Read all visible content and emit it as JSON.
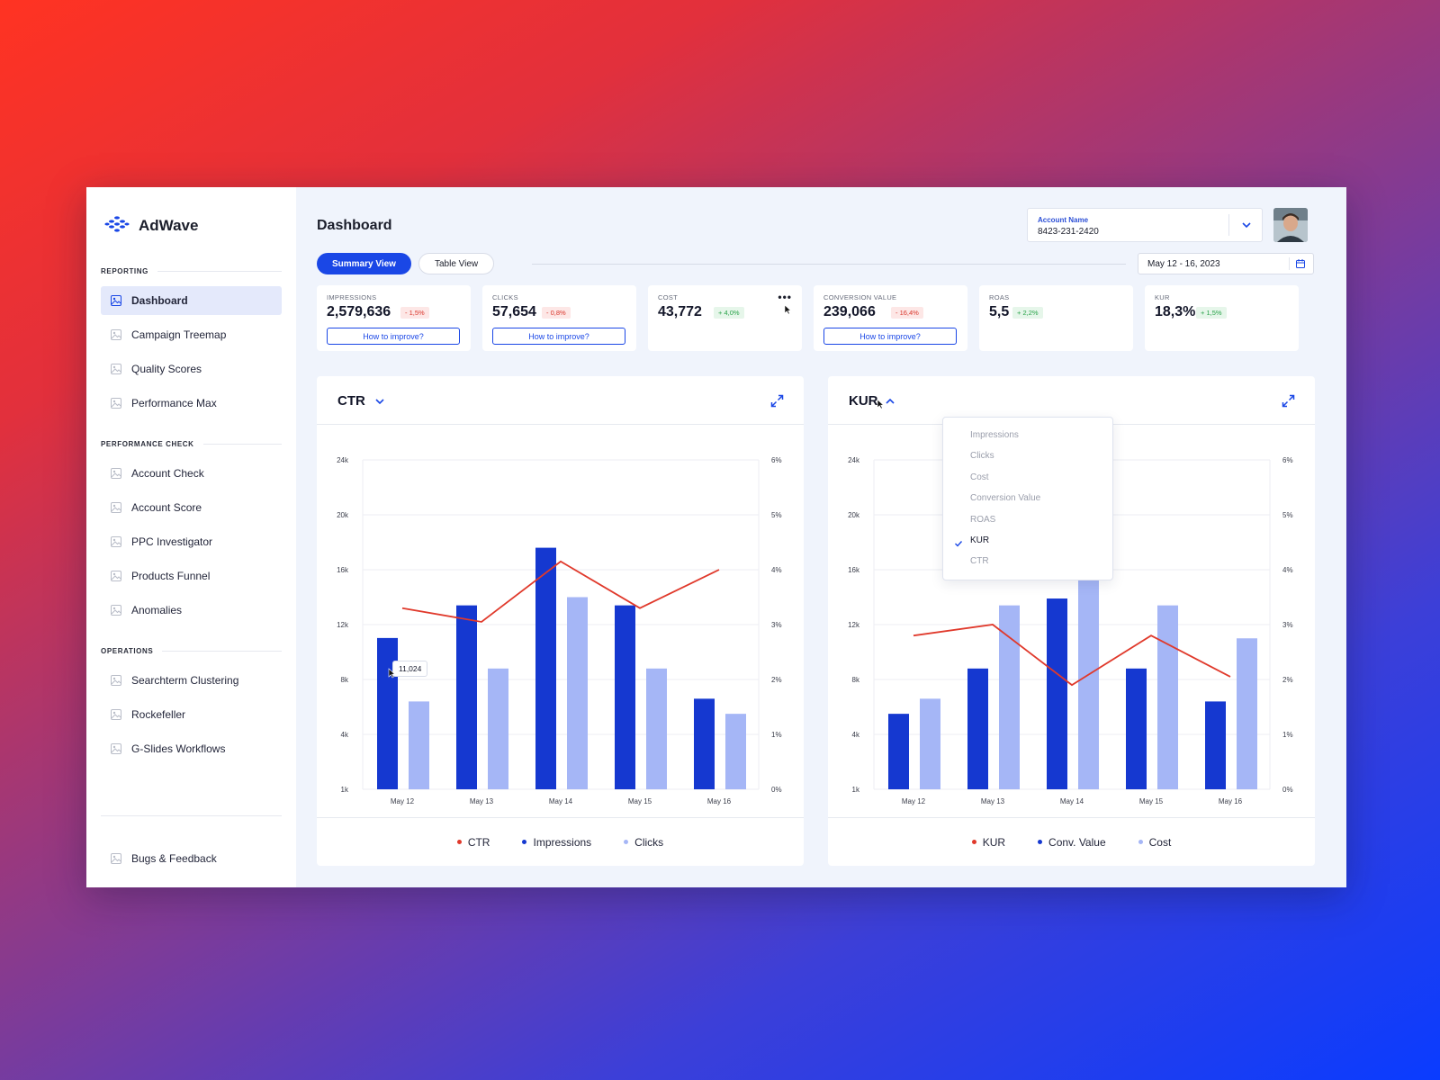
{
  "app": {
    "name": "AdWave"
  },
  "sidebar": {
    "sections": [
      {
        "label": "REPORTING",
        "items": [
          {
            "label": "Dashboard",
            "active": true
          },
          {
            "label": "Campaign Treemap"
          },
          {
            "label": "Quality Scores"
          },
          {
            "label": "Performance Max"
          }
        ]
      },
      {
        "label": "PERFORMANCE CHECK",
        "items": [
          {
            "label": "Account Check"
          },
          {
            "label": "Account Score"
          },
          {
            "label": "PPC Investigator"
          },
          {
            "label": "Products Funnel"
          },
          {
            "label": "Anomalies"
          }
        ]
      },
      {
        "label": "OPERATIONS",
        "items": [
          {
            "label": "Searchterm Clustering"
          },
          {
            "label": "Rockefeller"
          },
          {
            "label": "G-Slides Workflows"
          }
        ]
      }
    ],
    "bottom_item": {
      "label": "Bugs & Feedback"
    }
  },
  "header": {
    "title": "Dashboard",
    "account": {
      "label": "Account Name",
      "value": "8423-231-2420"
    }
  },
  "tabs": [
    {
      "label": "Summary View",
      "active": true
    },
    {
      "label": "Table View",
      "active": false
    }
  ],
  "date_range": "May 12 - 16, 2023",
  "kpis": [
    {
      "label": "IMPRESSIONS",
      "value": "2,579,636",
      "delta": "- 1,5%",
      "trend": "neg",
      "action": "How to improve?"
    },
    {
      "label": "CLICKS",
      "value": "57,654",
      "delta": "- 0,8%",
      "trend": "neg",
      "action": "How to improve?"
    },
    {
      "label": "COST",
      "value": "43,772",
      "delta": "+ 4,0%",
      "trend": "pos",
      "action": ""
    },
    {
      "label": "CONVERSION VALUE",
      "value": "239,066",
      "delta": "- 16,4%",
      "trend": "neg",
      "action": "How to improve?"
    },
    {
      "label": "ROAS",
      "value": "5,5",
      "delta": "+ 2,2%",
      "trend": "pos",
      "action": ""
    },
    {
      "label": "KUR",
      "value": "18,3%",
      "delta": "+ 1,5%",
      "trend": "pos",
      "action": ""
    }
  ],
  "colors": {
    "accent": "#1a47e6",
    "bar_dark": "#1538d0",
    "bar_light": "#a5b6f6",
    "line": "#e0392b"
  },
  "dropdown": {
    "options": [
      "Impressions",
      "Clicks",
      "Cost",
      "Conversion Value",
      "ROAS",
      "KUR",
      "CTR"
    ],
    "selected": "KUR"
  },
  "tooltip": "11,024",
  "chart_data": [
    {
      "type": "bar",
      "title": "CTR",
      "categories": [
        "May 12",
        "May 13",
        "May 14",
        "May 15",
        "May 16"
      ],
      "y_left_ticks": [
        "24k",
        "20k",
        "16k",
        "12k",
        "8k",
        "4k",
        "1k"
      ],
      "y_right_ticks": [
        "6%",
        "5%",
        "4%",
        "3%",
        "2%",
        "1%",
        "0%"
      ],
      "series": [
        {
          "name": "Impressions",
          "kind": "bar",
          "values": [
            11024,
            13400,
            17600,
            13400,
            6600
          ]
        },
        {
          "name": "Clicks",
          "kind": "bar",
          "values": [
            6400,
            8800,
            14000,
            8800,
            5500
          ]
        },
        {
          "name": "CTR",
          "kind": "line",
          "axis": "right",
          "values": [
            3.3,
            3.05,
            4.15,
            3.3,
            4.0
          ]
        }
      ],
      "legend": [
        "CTR",
        "Impressions",
        "Clicks"
      ]
    },
    {
      "type": "bar",
      "title": "KUR",
      "categories": [
        "May 12",
        "May 13",
        "May 14",
        "May 15",
        "May 16"
      ],
      "y_left_ticks": [
        "24k",
        "20k",
        "16k",
        "12k",
        "8k",
        "4k",
        "1k"
      ],
      "y_right_ticks": [
        "6%",
        "5%",
        "4%",
        "3%",
        "2%",
        "1%",
        "0%"
      ],
      "series": [
        {
          "name": "Conv. Value",
          "kind": "bar",
          "values": [
            5500,
            8800,
            13900,
            8800,
            6400
          ]
        },
        {
          "name": "Cost",
          "kind": "bar",
          "values": [
            6600,
            13400,
            17600,
            13400,
            11000
          ]
        },
        {
          "name": "KUR",
          "kind": "line",
          "axis": "right",
          "values": [
            2.8,
            3.0,
            1.9,
            2.8,
            2.05
          ]
        }
      ],
      "legend": [
        "KUR",
        "Conv. Value",
        "Cost"
      ]
    }
  ]
}
